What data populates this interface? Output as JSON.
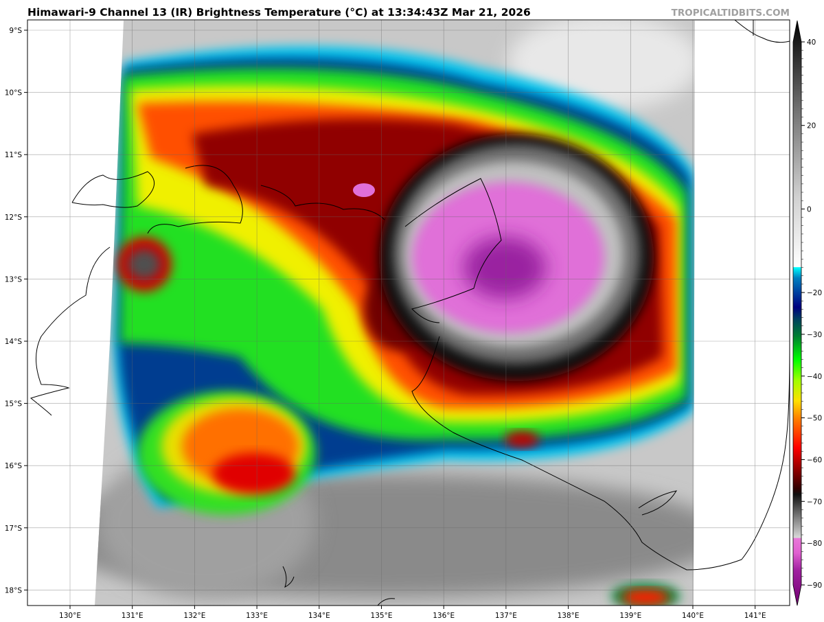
{
  "title": "Himawari-9 Channel 13 (IR) Brightness Temperature (°C) at 13:34:43Z Mar 21, 2026",
  "credit": "TROPICALTIDBITS.COM",
  "map": {
    "lon_labels": [
      "130°E",
      "131°E",
      "132°E",
      "133°E",
      "134°E",
      "135°E",
      "136°E",
      "137°E",
      "138°E",
      "139°E",
      "140°E",
      "141°E"
    ],
    "lat_labels": [
      "9°S",
      "10°S",
      "11°S",
      "12°S",
      "13°S",
      "14°S",
      "15°S",
      "16°S",
      "17°S",
      "18°S"
    ]
  },
  "colorbar": {
    "ticks": [
      "40",
      "20",
      "0",
      "−20",
      "−30",
      "−40",
      "−50",
      "−60",
      "−70",
      "−80",
      "−90"
    ],
    "range": [
      -90,
      40
    ],
    "units": "°C",
    "colors": {
      "warm_top": "#000000",
      "gray_mid": "#bfbfbf",
      "cyan": "#00ffff",
      "navy": "#000080",
      "green": "#00ff00",
      "yellow": "#ffff00",
      "orange": "#ff8000",
      "red": "#ff0000",
      "dark_red": "#600000",
      "pink": "#e060d0",
      "purple": "#800080"
    }
  }
}
